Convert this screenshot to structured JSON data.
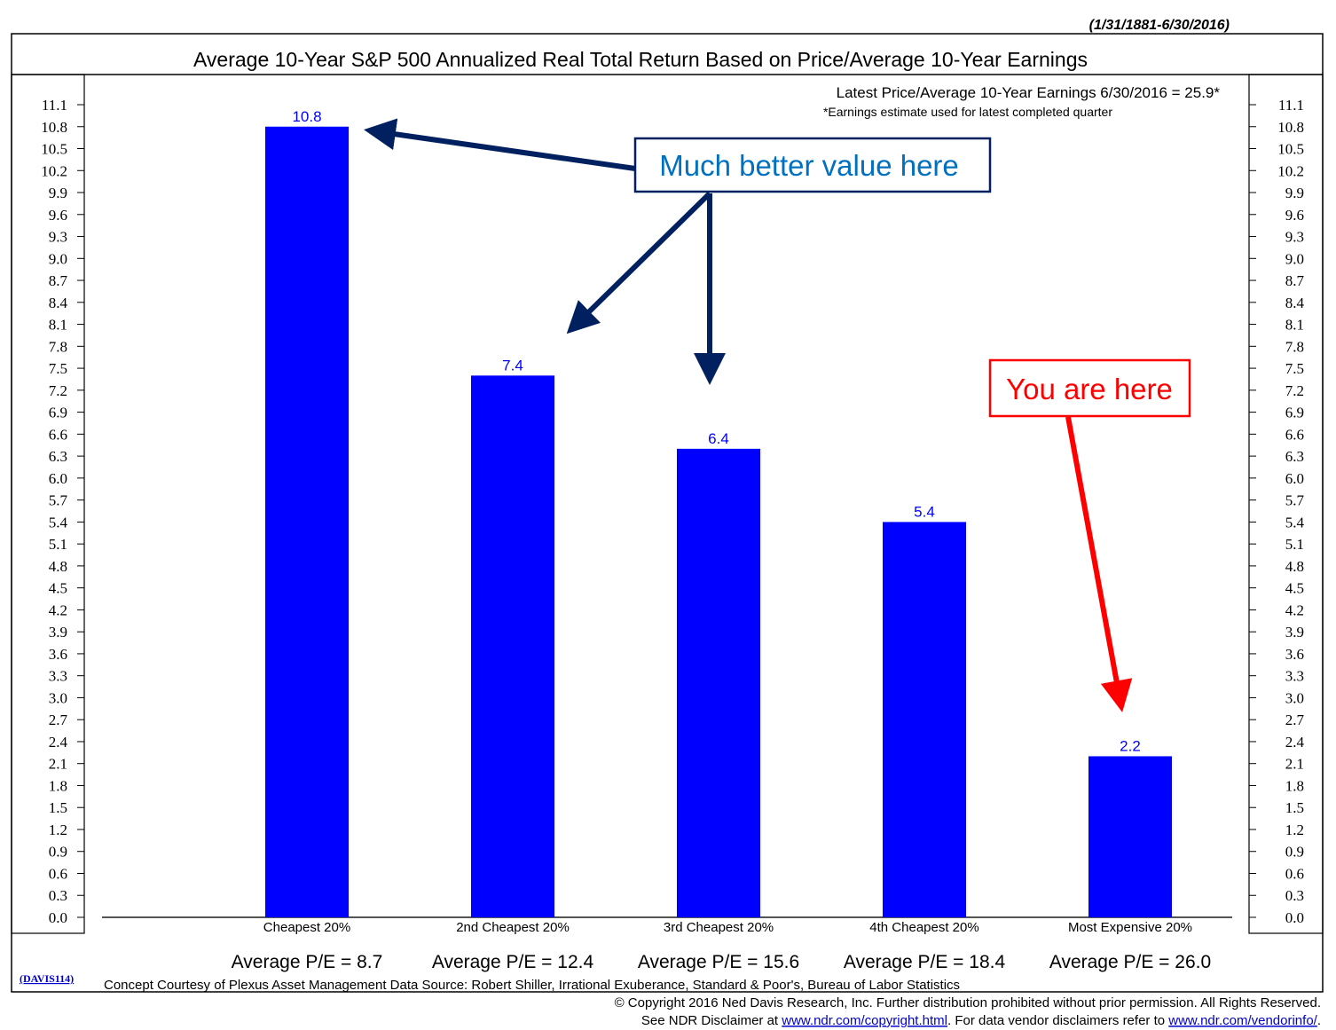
{
  "header": {
    "date_range": "(1/31/1881-6/30/2016)"
  },
  "chart_data": {
    "type": "bar",
    "title": "Average 10-Year S&P 500 Annualized Real Total Return Based on Price/Average 10-Year Earnings",
    "subtitle": "Latest Price/Average 10-Year Earnings 6/30/2016 = 25.9*",
    "footnote": "*Earnings estimate used for latest completed quarter",
    "categories": [
      "Cheapest 20%",
      "2nd Cheapest 20%",
      "3rd Cheapest 20%",
      "4th Cheapest 20%",
      "Most Expensive 20%"
    ],
    "values": [
      10.8,
      7.4,
      6.4,
      5.4,
      2.2
    ],
    "data_labels": [
      "10.8",
      "7.4",
      "6.4",
      "5.4",
      "2.2"
    ],
    "pe_labels": [
      "Average P/E = 8.7",
      "Average P/E = 12.4",
      "Average P/E = 15.6",
      "Average P/E = 18.4",
      "Average P/E = 26.0"
    ],
    "ylim": [
      0,
      11.1
    ],
    "y_ticks": [
      "0.0",
      "0.3",
      "0.6",
      "0.9",
      "1.2",
      "1.5",
      "1.8",
      "2.1",
      "2.4",
      "2.7",
      "3.0",
      "3.3",
      "3.6",
      "3.9",
      "4.2",
      "4.5",
      "4.8",
      "5.1",
      "5.4",
      "5.7",
      "6.0",
      "6.3",
      "6.6",
      "6.9",
      "7.2",
      "7.5",
      "7.8",
      "8.1",
      "8.4",
      "8.7",
      "9.0",
      "9.3",
      "9.6",
      "9.9",
      "10.2",
      "10.5",
      "10.8",
      "11.1"
    ],
    "grid": false,
    "bar_color": "#0000ff",
    "axis_on_both_sides": true
  },
  "annotations": {
    "value_callout": "Much better value here",
    "value_callout_color": "#0070c0",
    "value_arrow_color": "#002060",
    "here_callout": "You are here",
    "here_color": "#ff0000"
  },
  "footer": {
    "code": "(DAVIS114)",
    "source": "Concept Courtesy of Plexus Asset Management Data Source: Robert Shiller, Irrational Exuberance, Standard & Poor's, Bureau of Labor Statistics",
    "copyright": "© Copyright 2016 Ned Davis Research, Inc.  Further distribution prohibited without prior permission.  All Rights Reserved.",
    "disclaimer_prefix": "See NDR Disclaimer at ",
    "disclaimer_link1": "www.ndr.com/copyright.html",
    "disclaimer_middle": ". For data vendor disclaimers refer to ",
    "disclaimer_link2": "www.ndr.com/vendorinfo/",
    "disclaimer_suffix": "."
  }
}
